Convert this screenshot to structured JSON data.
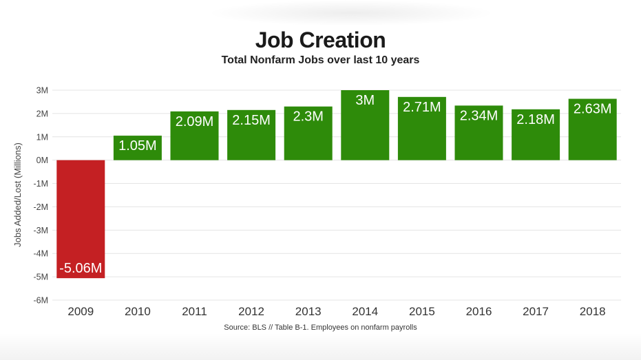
{
  "chart_data": {
    "type": "bar",
    "title": "Job Creation",
    "subtitle": "Total Nonfarm Jobs over last 10 years",
    "xlabel": "",
    "ylabel": "Jobs Added/Lost (Millions)",
    "source": "Source: BLS // Table B-1. Employees on nonfarm payrolls",
    "categories": [
      "2009",
      "2010",
      "2011",
      "2012",
      "2013",
      "2014",
      "2015",
      "2016",
      "2017",
      "2018"
    ],
    "values": [
      -5.06,
      1.05,
      2.09,
      2.15,
      2.3,
      3,
      2.71,
      2.34,
      2.18,
      2.63
    ],
    "data_labels": [
      "-5.06M",
      "1.05M",
      "2.09M",
      "2.15M",
      "2.3M",
      "3M",
      "2.71M",
      "2.34M",
      "2.18M",
      "2.63M"
    ],
    "yticks": [
      3,
      2,
      1,
      0,
      -1,
      -2,
      -3,
      -4,
      -5,
      -6
    ],
    "ytick_labels": [
      "3M",
      "2M",
      "1M",
      "0M",
      "-1M",
      "-2M",
      "-3M",
      "-4M",
      "-5M",
      "-6M"
    ],
    "ylim": [
      -6,
      3
    ],
    "grid": true,
    "legend": "none",
    "colors": {
      "positive": "#2e8b0a",
      "negative": "#c42023",
      "grid": "#e4e4e4"
    }
  }
}
